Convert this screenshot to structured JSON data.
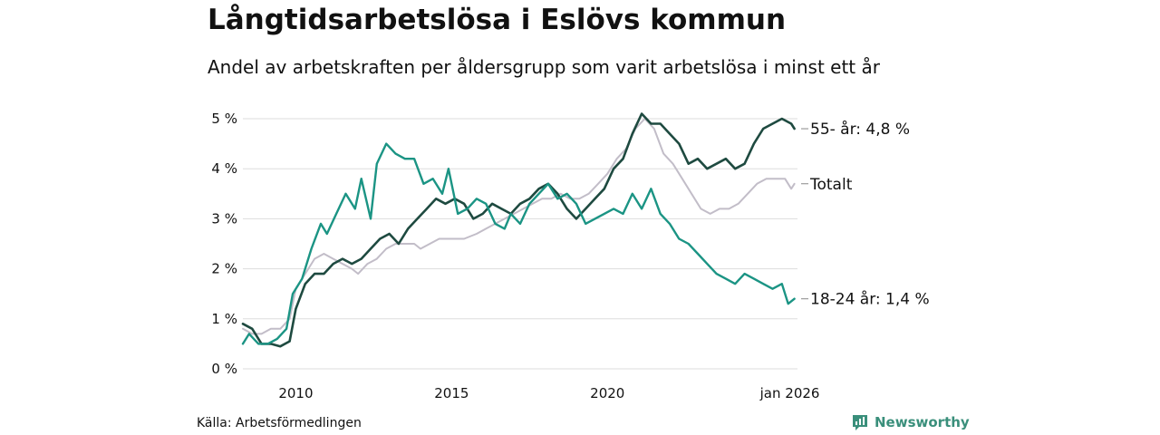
{
  "title": "Långtidsarbetslösa i Eslövs kommun",
  "subtitle": "Andel av arbetskraften per åldersgrupp som varit arbetslösa i minst ett år",
  "source": "Källa: Arbetsförmedlingen",
  "brand": "Newsworthy",
  "colors": {
    "series_55": "#1e4a40",
    "series_total": "#c2bdc8",
    "series_youth": "#1b9484",
    "grid": "#dddddd",
    "brand": "#3a8f7b"
  },
  "chart_data": {
    "type": "line",
    "title": "Långtidsarbetslösa i Eslövs kommun",
    "xlabel": "",
    "ylabel": "",
    "xlim": [
      2008.3,
      2026.1
    ],
    "ylim": [
      0,
      5
    ],
    "grid": true,
    "y_ticks": [
      {
        "v": 0,
        "label": "0 %"
      },
      {
        "v": 1,
        "label": "1 %"
      },
      {
        "v": 2,
        "label": "2 %"
      },
      {
        "v": 3,
        "label": "3 %"
      },
      {
        "v": 4,
        "label": "4 %"
      },
      {
        "v": 5,
        "label": "5 %"
      }
    ],
    "x_ticks": [
      {
        "v": 2010,
        "label": "2010"
      },
      {
        "v": 2015,
        "label": "2015"
      },
      {
        "v": 2020,
        "label": "2020"
      },
      {
        "v": 2026,
        "label": "jan 2026"
      }
    ],
    "series": [
      {
        "name": "Totalt",
        "label": "Totalt",
        "color": "#c2bdc8",
        "width": 2,
        "points": [
          [
            2008.3,
            0.8
          ],
          [
            2008.6,
            0.7
          ],
          [
            2008.9,
            0.7
          ],
          [
            2009.2,
            0.8
          ],
          [
            2009.5,
            0.8
          ],
          [
            2009.8,
            1.0
          ],
          [
            2010.0,
            1.6
          ],
          [
            2010.3,
            1.9
          ],
          [
            2010.6,
            2.2
          ],
          [
            2010.9,
            2.3
          ],
          [
            2011.2,
            2.2
          ],
          [
            2011.5,
            2.1
          ],
          [
            2011.8,
            2.0
          ],
          [
            2012.0,
            1.9
          ],
          [
            2012.3,
            2.1
          ],
          [
            2012.6,
            2.2
          ],
          [
            2012.9,
            2.4
          ],
          [
            2013.2,
            2.5
          ],
          [
            2013.5,
            2.5
          ],
          [
            2013.8,
            2.5
          ],
          [
            2014.0,
            2.4
          ],
          [
            2014.3,
            2.5
          ],
          [
            2014.6,
            2.6
          ],
          [
            2015.0,
            2.6
          ],
          [
            2015.4,
            2.6
          ],
          [
            2015.8,
            2.7
          ],
          [
            2016.1,
            2.8
          ],
          [
            2016.4,
            2.9
          ],
          [
            2016.7,
            3.0
          ],
          [
            2017.0,
            3.1
          ],
          [
            2017.3,
            3.2
          ],
          [
            2017.6,
            3.3
          ],
          [
            2017.9,
            3.4
          ],
          [
            2018.2,
            3.4
          ],
          [
            2018.5,
            3.5
          ],
          [
            2018.8,
            3.4
          ],
          [
            2019.1,
            3.4
          ],
          [
            2019.4,
            3.5
          ],
          [
            2019.7,
            3.7
          ],
          [
            2020.0,
            3.9
          ],
          [
            2020.3,
            4.2
          ],
          [
            2020.6,
            4.4
          ],
          [
            2020.9,
            4.8
          ],
          [
            2021.2,
            5.0
          ],
          [
            2021.5,
            4.8
          ],
          [
            2021.8,
            4.3
          ],
          [
            2022.1,
            4.1
          ],
          [
            2022.4,
            3.8
          ],
          [
            2022.7,
            3.5
          ],
          [
            2023.0,
            3.2
          ],
          [
            2023.3,
            3.1
          ],
          [
            2023.6,
            3.2
          ],
          [
            2023.9,
            3.2
          ],
          [
            2024.2,
            3.3
          ],
          [
            2024.5,
            3.5
          ],
          [
            2024.8,
            3.7
          ],
          [
            2025.1,
            3.8
          ],
          [
            2025.4,
            3.8
          ],
          [
            2025.7,
            3.8
          ],
          [
            2025.9,
            3.6
          ],
          [
            2026.0,
            3.7
          ]
        ]
      },
      {
        "name": "55- år",
        "label": "55- år: 4,8 %",
        "color": "#1e4a40",
        "width": 2.6,
        "points": [
          [
            2008.3,
            0.9
          ],
          [
            2008.6,
            0.8
          ],
          [
            2008.9,
            0.5
          ],
          [
            2009.2,
            0.5
          ],
          [
            2009.5,
            0.45
          ],
          [
            2009.8,
            0.55
          ],
          [
            2010.0,
            1.2
          ],
          [
            2010.3,
            1.7
          ],
          [
            2010.6,
            1.9
          ],
          [
            2010.9,
            1.9
          ],
          [
            2011.2,
            2.1
          ],
          [
            2011.5,
            2.2
          ],
          [
            2011.8,
            2.1
          ],
          [
            2012.1,
            2.2
          ],
          [
            2012.4,
            2.4
          ],
          [
            2012.7,
            2.6
          ],
          [
            2013.0,
            2.7
          ],
          [
            2013.3,
            2.5
          ],
          [
            2013.6,
            2.8
          ],
          [
            2013.9,
            3.0
          ],
          [
            2014.2,
            3.2
          ],
          [
            2014.5,
            3.4
          ],
          [
            2014.8,
            3.3
          ],
          [
            2015.1,
            3.4
          ],
          [
            2015.4,
            3.3
          ],
          [
            2015.7,
            3.0
          ],
          [
            2016.0,
            3.1
          ],
          [
            2016.3,
            3.3
          ],
          [
            2016.6,
            3.2
          ],
          [
            2016.9,
            3.1
          ],
          [
            2017.2,
            3.3
          ],
          [
            2017.5,
            3.4
          ],
          [
            2017.8,
            3.6
          ],
          [
            2018.1,
            3.7
          ],
          [
            2018.4,
            3.5
          ],
          [
            2018.7,
            3.2
          ],
          [
            2019.0,
            3.0
          ],
          [
            2019.3,
            3.2
          ],
          [
            2019.6,
            3.4
          ],
          [
            2019.9,
            3.6
          ],
          [
            2020.2,
            4.0
          ],
          [
            2020.5,
            4.2
          ],
          [
            2020.8,
            4.7
          ],
          [
            2021.1,
            5.1
          ],
          [
            2021.4,
            4.9
          ],
          [
            2021.7,
            4.9
          ],
          [
            2022.0,
            4.7
          ],
          [
            2022.3,
            4.5
          ],
          [
            2022.6,
            4.1
          ],
          [
            2022.9,
            4.2
          ],
          [
            2023.2,
            4.0
          ],
          [
            2023.5,
            4.1
          ],
          [
            2023.8,
            4.2
          ],
          [
            2024.1,
            4.0
          ],
          [
            2024.4,
            4.1
          ],
          [
            2024.7,
            4.5
          ],
          [
            2025.0,
            4.8
          ],
          [
            2025.3,
            4.9
          ],
          [
            2025.6,
            5.0
          ],
          [
            2025.9,
            4.9
          ],
          [
            2026.0,
            4.8
          ]
        ]
      },
      {
        "name": "18-24 år",
        "label": "18-24 år: 1,4 %",
        "color": "#1b9484",
        "width": 2.4,
        "points": [
          [
            2008.3,
            0.5
          ],
          [
            2008.5,
            0.7
          ],
          [
            2008.8,
            0.5
          ],
          [
            2009.1,
            0.5
          ],
          [
            2009.4,
            0.6
          ],
          [
            2009.7,
            0.8
          ],
          [
            2009.9,
            1.5
          ],
          [
            2010.2,
            1.8
          ],
          [
            2010.5,
            2.4
          ],
          [
            2010.8,
            2.9
          ],
          [
            2011.0,
            2.7
          ],
          [
            2011.3,
            3.1
          ],
          [
            2011.6,
            3.5
          ],
          [
            2011.9,
            3.2
          ],
          [
            2012.1,
            3.8
          ],
          [
            2012.4,
            3.0
          ],
          [
            2012.6,
            4.1
          ],
          [
            2012.9,
            4.5
          ],
          [
            2013.2,
            4.3
          ],
          [
            2013.5,
            4.2
          ],
          [
            2013.8,
            4.2
          ],
          [
            2014.1,
            3.7
          ],
          [
            2014.4,
            3.8
          ],
          [
            2014.7,
            3.5
          ],
          [
            2014.9,
            4.0
          ],
          [
            2015.2,
            3.1
          ],
          [
            2015.5,
            3.2
          ],
          [
            2015.8,
            3.4
          ],
          [
            2016.1,
            3.3
          ],
          [
            2016.4,
            2.9
          ],
          [
            2016.7,
            2.8
          ],
          [
            2016.9,
            3.1
          ],
          [
            2017.2,
            2.9
          ],
          [
            2017.5,
            3.3
          ],
          [
            2017.8,
            3.5
          ],
          [
            2018.1,
            3.7
          ],
          [
            2018.4,
            3.4
          ],
          [
            2018.7,
            3.5
          ],
          [
            2019.0,
            3.3
          ],
          [
            2019.3,
            2.9
          ],
          [
            2019.6,
            3.0
          ],
          [
            2019.9,
            3.1
          ],
          [
            2020.2,
            3.2
          ],
          [
            2020.5,
            3.1
          ],
          [
            2020.8,
            3.5
          ],
          [
            2021.1,
            3.2
          ],
          [
            2021.4,
            3.6
          ],
          [
            2021.7,
            3.1
          ],
          [
            2022.0,
            2.9
          ],
          [
            2022.3,
            2.6
          ],
          [
            2022.6,
            2.5
          ],
          [
            2022.9,
            2.3
          ],
          [
            2023.2,
            2.1
          ],
          [
            2023.5,
            1.9
          ],
          [
            2023.8,
            1.8
          ],
          [
            2024.1,
            1.7
          ],
          [
            2024.4,
            1.9
          ],
          [
            2024.7,
            1.8
          ],
          [
            2025.0,
            1.7
          ],
          [
            2025.3,
            1.6
          ],
          [
            2025.6,
            1.7
          ],
          [
            2025.8,
            1.3
          ],
          [
            2026.0,
            1.4
          ]
        ]
      }
    ]
  }
}
